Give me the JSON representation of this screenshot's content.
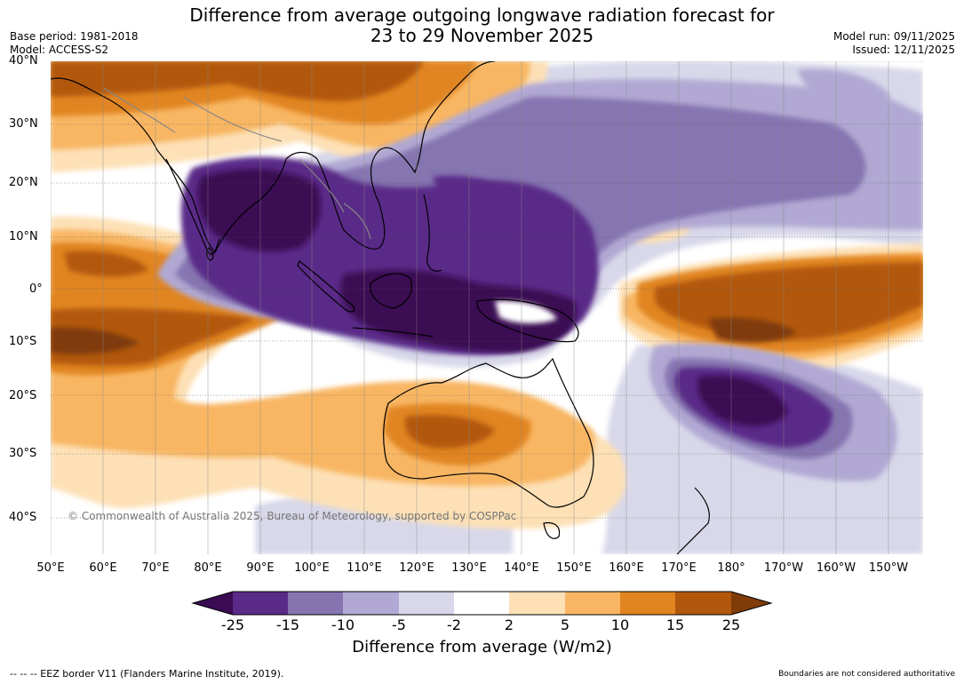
{
  "header": {
    "title_line1": "Difference from average outgoing longwave radiation forecast for",
    "title_line2": "23 to 29 November 2025",
    "base_period": "Base period: 1981-2018",
    "model": "Model: ACCESS-S2",
    "model_run": "Model run: 09/11/2025",
    "issued": "Issued: 12/11/2025"
  },
  "map": {
    "lat_ticks": [
      "40°N",
      "30°N",
      "20°N",
      "10°N",
      "0°",
      "10°S",
      "20°S",
      "30°S",
      "40°S"
    ],
    "lon_ticks": [
      "50°E",
      "60°E",
      "70°E",
      "80°E",
      "90°E",
      "100°E",
      "110°E",
      "120°E",
      "130°E",
      "140°E",
      "150°E",
      "160°E",
      "170°E",
      "180°",
      "170°W",
      "160°W",
      "150°W"
    ],
    "copyright": "© Commonwealth of Australia 2025, Bureau of Meteorology, supported by COSPPac",
    "colors": {
      "neg25": "#3a0a52",
      "neg15": "#5a2a88",
      "neg10": "#8574b0",
      "neg5": "#b1a9d3",
      "neg2": "#d8d8ea",
      "neutral": "#ffffff",
      "pos2": "#fde0b6",
      "pos5": "#f8b664",
      "pos10": "#e18520",
      "pos15": "#b2580c",
      "pos25": "#7f3b08",
      "land": "#000000",
      "border": "#888888"
    }
  },
  "colorbar": {
    "labels": [
      "-25",
      "-15",
      "-10",
      "-5",
      "-2",
      "2",
      "5",
      "10",
      "15",
      "25"
    ],
    "title": "Difference from average (W/m2)"
  },
  "footer": {
    "eez": "--  --  -- EEZ border V11 (Flanders Marine Institute, 2019).",
    "boundaries": "Boundaries are not considered authoritative"
  }
}
